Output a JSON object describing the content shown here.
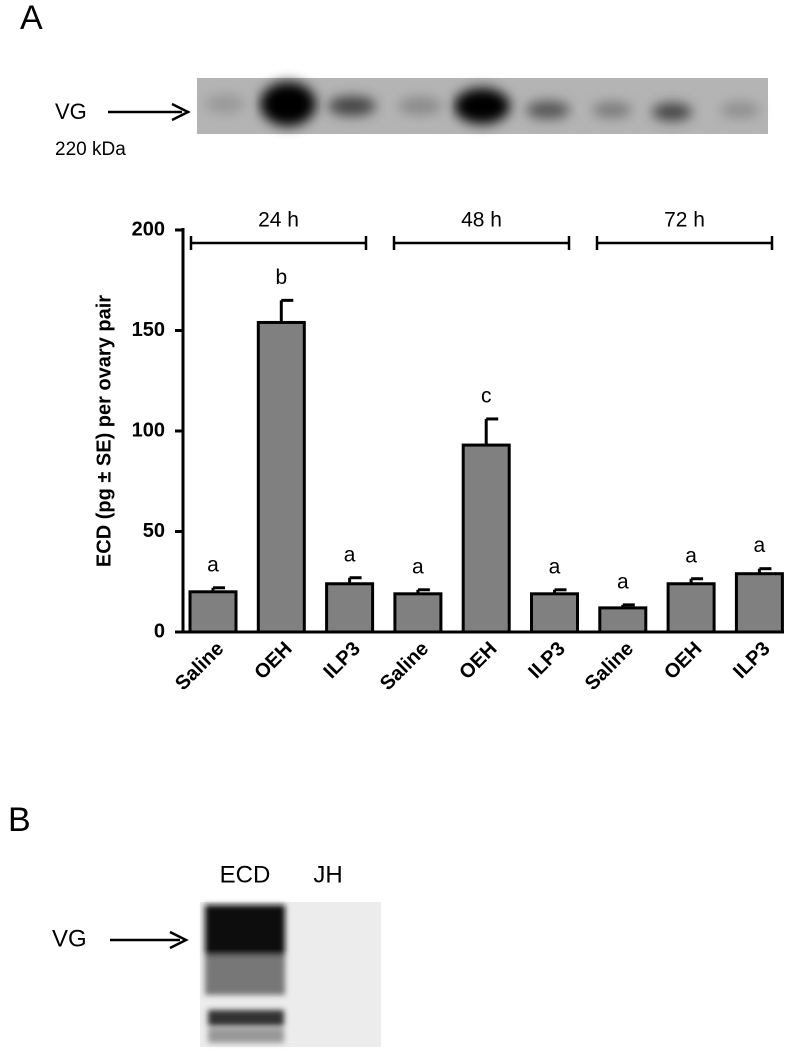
{
  "panel_a": {
    "label": "A",
    "blot_label": "VG",
    "blot_size": "220 kDa"
  },
  "chart_data": {
    "type": "bar",
    "y_label": "ECD (pg ± SE) per ovary pair",
    "categories": [
      "Saline",
      "OEH",
      "ILP3",
      "Saline",
      "OEH",
      "ILP3",
      "Saline",
      "OEH",
      "ILP3"
    ],
    "groups": [
      "24 h",
      "48 h",
      "72 h"
    ],
    "values": [
      20,
      154,
      24,
      19,
      93,
      19,
      12,
      24,
      29
    ],
    "errors": [
      2,
      11,
      3,
      2,
      13,
      2,
      1.5,
      2.5,
      2.5
    ],
    "annotations": [
      "a",
      "b",
      "a",
      "a",
      "c",
      "a",
      "a",
      "a",
      "a"
    ],
    "color": "#808080",
    "ylim": [
      0,
      200
    ],
    "yticks": [
      0,
      50,
      100,
      150,
      200
    ]
  },
  "panel_b": {
    "label": "B",
    "lanes": [
      "ECD",
      "JH"
    ],
    "blot_label": "VG"
  }
}
